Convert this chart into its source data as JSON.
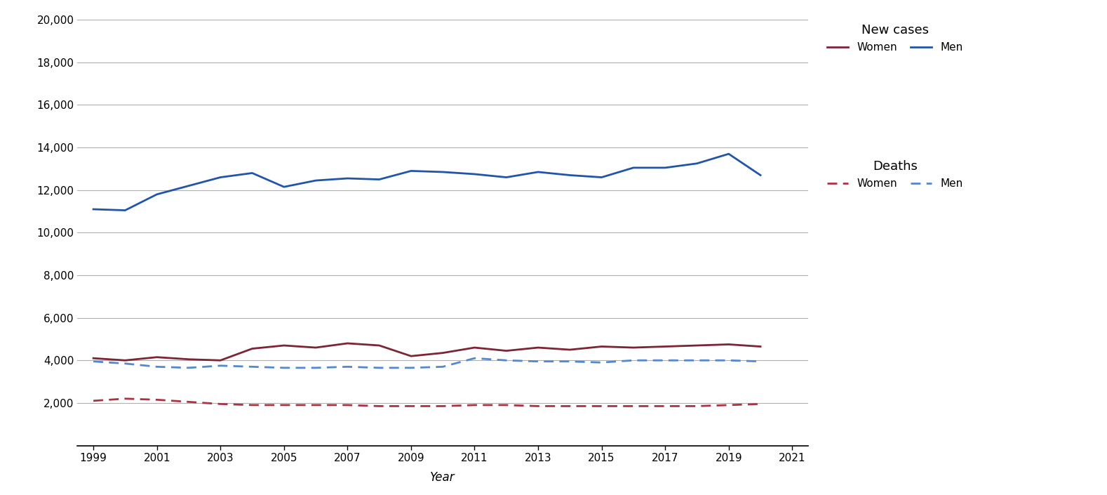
{
  "years": [
    1999,
    2000,
    2001,
    2002,
    2003,
    2004,
    2005,
    2006,
    2007,
    2008,
    2009,
    2010,
    2011,
    2012,
    2013,
    2014,
    2015,
    2016,
    2017,
    2018,
    2019,
    2020
  ],
  "new_cases_men": [
    11100,
    11050,
    11800,
    12200,
    12600,
    12800,
    12150,
    12450,
    12550,
    12500,
    12900,
    12850,
    12750,
    12600,
    12850,
    12700,
    12600,
    13050,
    13050,
    13250,
    13700,
    12700
  ],
  "new_cases_women": [
    4100,
    4000,
    4150,
    4050,
    4000,
    4550,
    4700,
    4600,
    4800,
    4700,
    4200,
    4350,
    4600,
    4450,
    4600,
    4500,
    4650,
    4600,
    4650,
    4700,
    4750,
    4650
  ],
  "deaths_men": [
    3950,
    3850,
    3700,
    3650,
    3750,
    3700,
    3650,
    3650,
    3700,
    3650,
    3650,
    3700,
    4100,
    4000,
    3950,
    3950,
    3900,
    4000,
    4000,
    4000,
    4000,
    3950
  ],
  "deaths_women": [
    2100,
    2200,
    2150,
    2050,
    1950,
    1900,
    1900,
    1900,
    1900,
    1850,
    1850,
    1850,
    1900,
    1900,
    1850,
    1850,
    1850,
    1850,
    1850,
    1850,
    1900,
    1950
  ],
  "color_men_cases": "#2255aa",
  "color_women_cases": "#7b2535",
  "color_men_deaths": "#5588cc",
  "color_women_deaths": "#aa3344",
  "ylim": [
    0,
    20000
  ],
  "yticks": [
    2000,
    4000,
    6000,
    8000,
    10000,
    12000,
    14000,
    16000,
    18000,
    20000
  ],
  "xticks": [
    1999,
    2001,
    2003,
    2005,
    2007,
    2009,
    2011,
    2013,
    2015,
    2017,
    2019,
    2021
  ],
  "xlabel": "Year",
  "legend_new_cases": "New cases",
  "legend_deaths": "Deaths",
  "legend_women": "Women",
  "legend_men": "Men",
  "background_color": "#ffffff",
  "grid_color": "#b0b0b0",
  "line_width": 2.0
}
